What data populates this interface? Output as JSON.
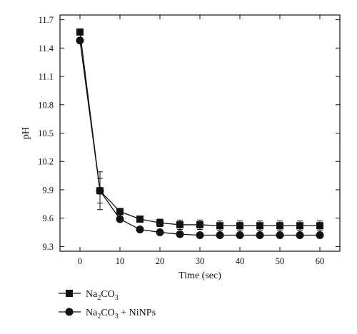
{
  "chart_data": {
    "type": "line",
    "title": "",
    "xlabel": "Time (sec)",
    "ylabel": "pH",
    "xlim": [
      -5,
      65
    ],
    "ylim": [
      9.25,
      11.75
    ],
    "xticks": [
      0,
      10,
      20,
      30,
      40,
      50,
      60
    ],
    "yticks": [
      9.3,
      9.6,
      9.9,
      10.2,
      10.5,
      10.8,
      11.1,
      11.4,
      11.7
    ],
    "grid": false,
    "legend_position": "bottom-left",
    "x": [
      0,
      5,
      10,
      15,
      20,
      25,
      30,
      35,
      40,
      45,
      50,
      55,
      60
    ],
    "series": [
      {
        "name": "Na2CO3",
        "marker": "square",
        "values": [
          11.57,
          9.89,
          9.67,
          9.59,
          9.55,
          9.53,
          9.53,
          9.52,
          9.52,
          9.52,
          9.52,
          9.52,
          9.52
        ],
        "errors": [
          0,
          0.13,
          0.02,
          0.02,
          0.04,
          0.05,
          0.05,
          0.05,
          0.05,
          0.05,
          0.05,
          0.05,
          0.05
        ]
      },
      {
        "name": "Na2CO3 + NiNPs",
        "marker": "circle",
        "values": [
          11.48,
          9.89,
          9.59,
          9.48,
          9.45,
          9.43,
          9.42,
          9.42,
          9.42,
          9.42,
          9.42,
          9.42,
          9.42
        ],
        "errors": [
          0,
          0.2,
          0.01,
          0.01,
          0.02,
          0.02,
          0.02,
          0.02,
          0.02,
          0.02,
          0.02,
          0.02,
          0.02
        ]
      }
    ]
  },
  "legend": {
    "items": [
      {
        "base": "Na",
        "sub": "2",
        "rest": "CO",
        "sub2": "3",
        "tail": ""
      },
      {
        "base": "Na",
        "sub": "2",
        "rest": "CO",
        "sub2": "3",
        "tail": " + NiNPs"
      }
    ]
  }
}
